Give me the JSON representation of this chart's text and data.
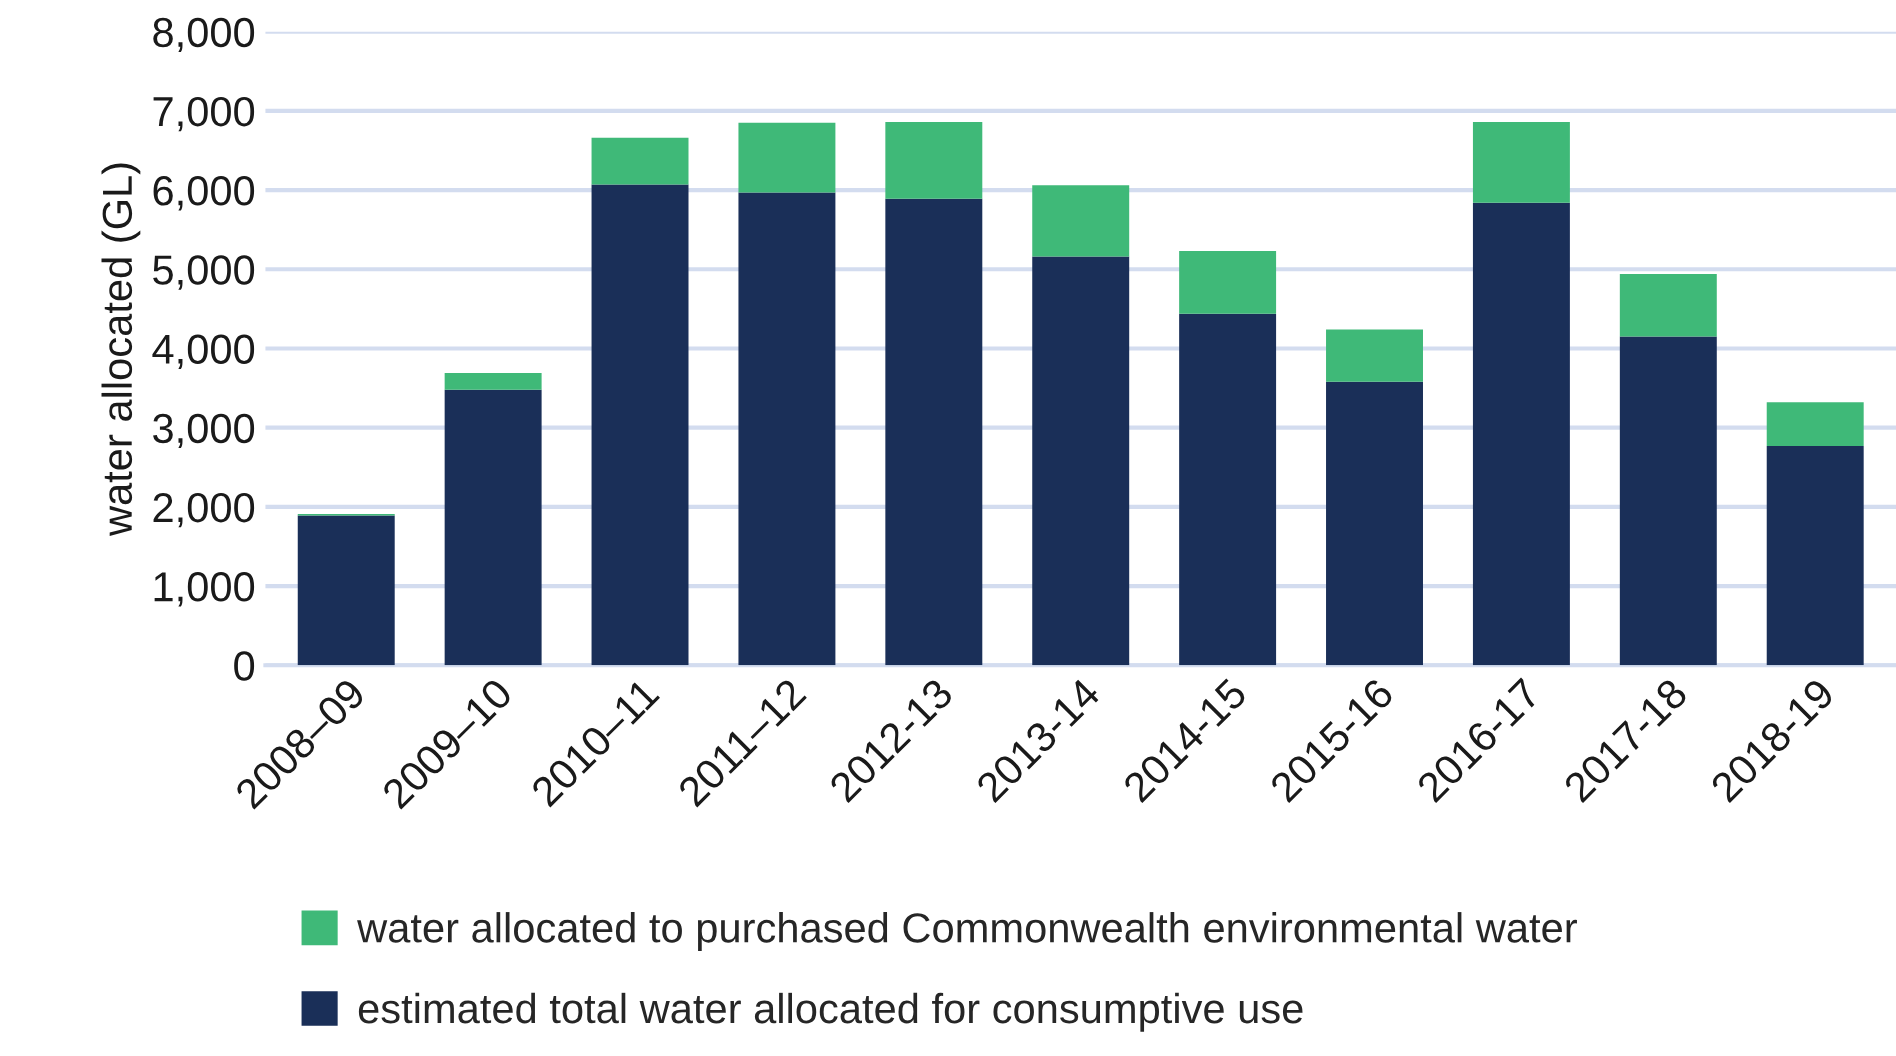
{
  "chart_data": {
    "type": "bar",
    "stacked": true,
    "ylabel": "water allocated (GL)",
    "categories": [
      "2008–09",
      "2009–10",
      "2010–11",
      "2011–12",
      "2012-13",
      "2013-14",
      "2014-15",
      "2015-16",
      "2016-17",
      "2017-18",
      "2018-19"
    ],
    "series": [
      {
        "name": "estimated total water allocated for consumptive use",
        "color": "#1a2f58",
        "values": [
          1890,
          3480,
          6070,
          5970,
          5890,
          5160,
          4440,
          3580,
          5840,
          4150,
          2770
        ]
      },
      {
        "name": "water allocated to purchased Commonwealth environmental water",
        "color": "#3fb978",
        "values": [
          20,
          210,
          590,
          880,
          970,
          900,
          790,
          660,
          1020,
          790,
          550
        ]
      }
    ],
    "ylim": [
      0,
      8000
    ],
    "yticks": [
      {
        "value": 0,
        "label": "0"
      },
      {
        "value": 1000,
        "label": "1,000"
      },
      {
        "value": 2000,
        "label": "2,000"
      },
      {
        "value": 3000,
        "label": "3,000"
      },
      {
        "value": 4000,
        "label": "4,000"
      },
      {
        "value": 5000,
        "label": "5,000"
      },
      {
        "value": 6000,
        "label": "6,000"
      },
      {
        "value": 7000,
        "label": "7,000"
      },
      {
        "value": 8000,
        "label": "8,000"
      }
    ],
    "grid": "y",
    "legend": "bottom"
  }
}
